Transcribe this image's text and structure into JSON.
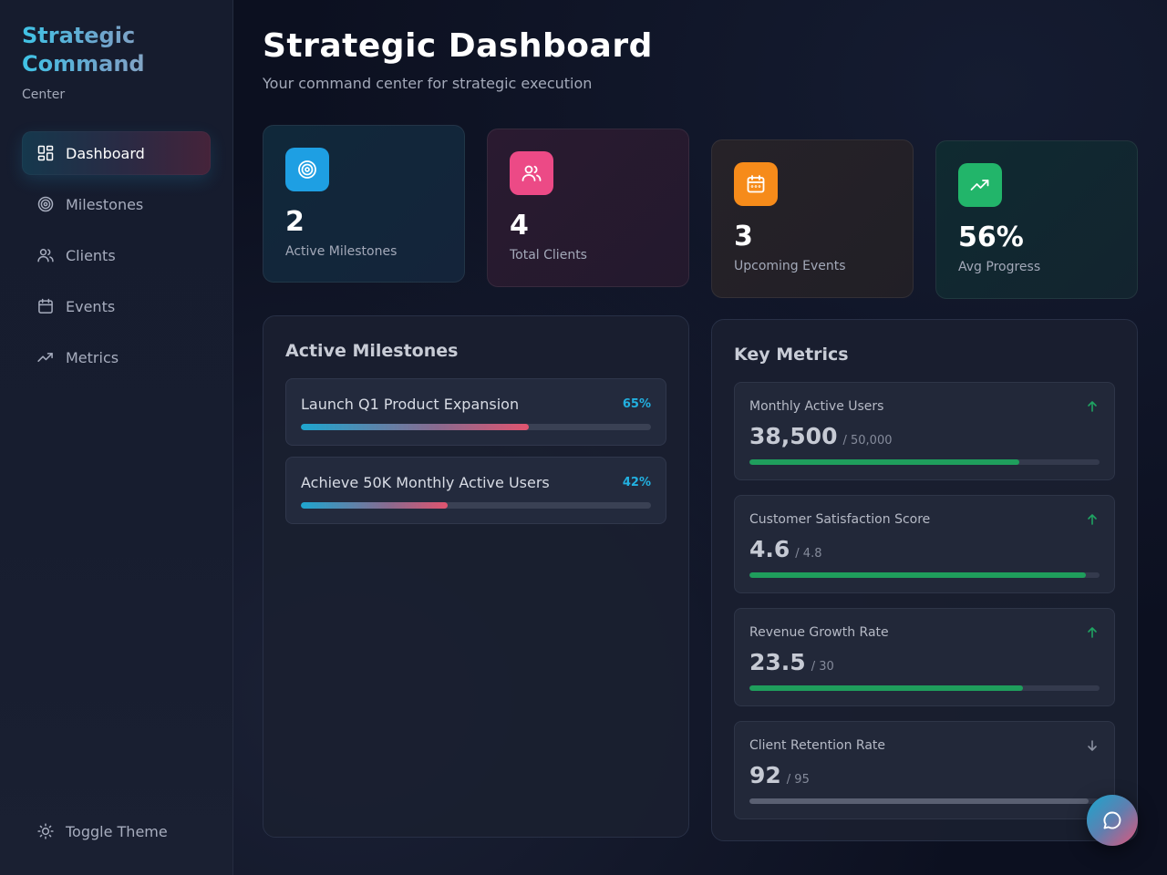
{
  "sidebar": {
    "brand_title": "Strategic Command",
    "brand_subtitle": "Center",
    "items": [
      {
        "label": "Dashboard",
        "icon": "dashboard-grid-icon",
        "active": true
      },
      {
        "label": "Milestones",
        "icon": "target-icon",
        "active": false
      },
      {
        "label": "Clients",
        "icon": "users-icon",
        "active": false
      },
      {
        "label": "Events",
        "icon": "calendar-icon",
        "active": false
      },
      {
        "label": "Metrics",
        "icon": "trending-up-icon",
        "active": false
      }
    ],
    "toggle_theme_label": "Toggle Theme",
    "toggle_theme_icon": "sun-icon"
  },
  "header": {
    "title": "Strategic Dashboard",
    "subtitle": "Your command center for strategic execution"
  },
  "stats": [
    {
      "value": "2",
      "label": "Active Milestones",
      "icon": "target-icon",
      "color": "#1e9fe3"
    },
    {
      "value": "4",
      "label": "Total Clients",
      "icon": "users-icon",
      "color": "#ec4a86"
    },
    {
      "value": "3",
      "label": "Upcoming Events",
      "icon": "calendar-icon",
      "color": "#f68b1a"
    },
    {
      "value": "56%",
      "label": "Avg Progress",
      "icon": "trending-up-icon",
      "color": "#22b56a"
    }
  ],
  "milestones": {
    "title": "Active Milestones",
    "items": [
      {
        "name": "Launch Q1 Product Expansion",
        "progress_label": "65%",
        "progress": 0.65
      },
      {
        "name": "Achieve 50K Monthly Active Users",
        "progress_label": "42%",
        "progress": 0.42
      }
    ]
  },
  "key_metrics": {
    "title": "Key Metrics",
    "items": [
      {
        "name": "Monthly Active Users",
        "value": "38,500",
        "target": "/ 50,000",
        "progress": 0.77,
        "trend": "up",
        "trend_icon": "arrow-up-icon"
      },
      {
        "name": "Customer Satisfaction Score",
        "value": "4.6",
        "target": "/ 4.8",
        "progress": 0.96,
        "trend": "up",
        "trend_icon": "arrow-up-icon"
      },
      {
        "name": "Revenue Growth Rate",
        "value": "23.5",
        "target": "/ 30",
        "progress": 0.78,
        "trend": "up",
        "trend_icon": "arrow-up-icon"
      },
      {
        "name": "Client Retention Rate",
        "value": "92",
        "target": "/ 95",
        "progress": 0.97,
        "trend": "down",
        "trend_icon": "arrow-down-icon"
      }
    ]
  },
  "chat_button_icon": "chat-bubble-icon",
  "colors": {
    "accent_cyan": "#22b0e0",
    "accent_pink": "#e0546f",
    "success_green": "#1f9e5c",
    "muted_bar": "#5a6072"
  }
}
